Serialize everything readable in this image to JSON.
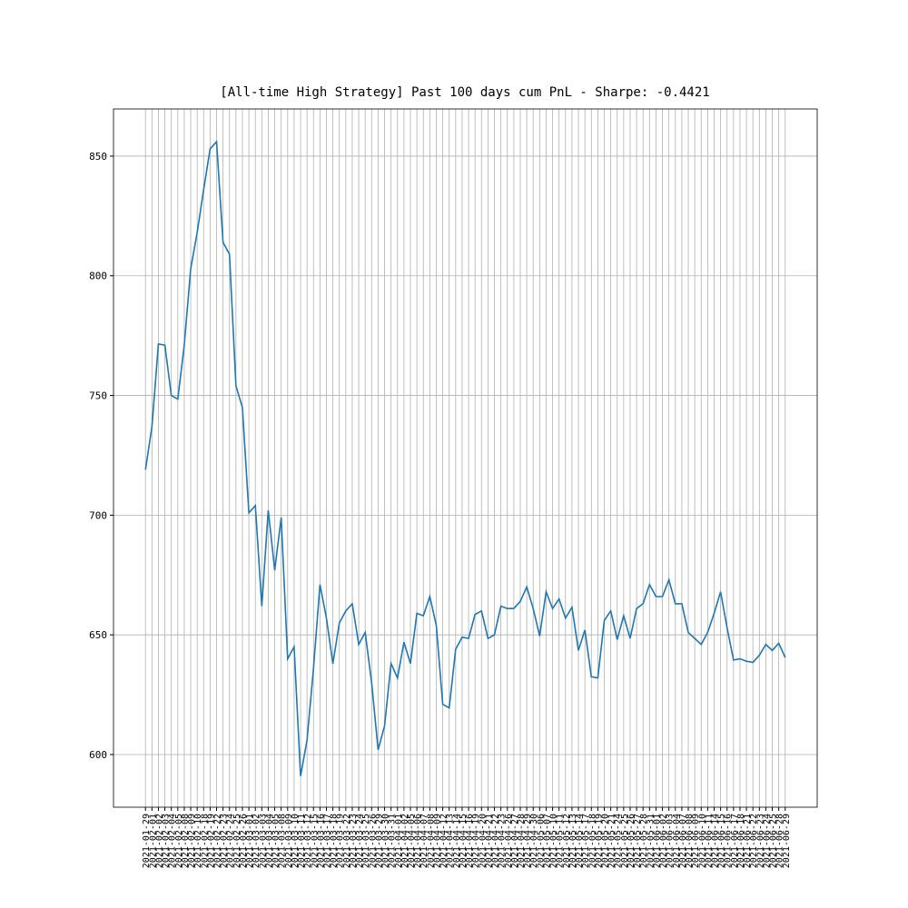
{
  "chart_data": {
    "type": "line",
    "title": "[All-time High Strategy] Past 100 days cum PnL - Sharpe: -0.4421",
    "categories": [
      "2021-01-29",
      "2021-02-01",
      "2021-02-02",
      "2021-02-03",
      "2021-02-04",
      "2021-02-05",
      "2021-02-08",
      "2021-02-09",
      "2021-02-10",
      "2021-02-18",
      "2021-02-19",
      "2021-02-22",
      "2021-02-23",
      "2021-02-24",
      "2021-02-25",
      "2021-02-26",
      "2021-03-01",
      "2021-03-02",
      "2021-03-03",
      "2021-03-04",
      "2021-03-05",
      "2021-03-08",
      "2021-03-09",
      "2021-03-10",
      "2021-03-11",
      "2021-03-12",
      "2021-03-15",
      "2021-03-16",
      "2021-03-17",
      "2021-03-18",
      "2021-03-19",
      "2021-03-22",
      "2021-03-23",
      "2021-03-24",
      "2021-03-25",
      "2021-03-26",
      "2021-03-29",
      "2021-03-30",
      "2021-03-31",
      "2021-04-01",
      "2021-04-02",
      "2021-04-05",
      "2021-04-06",
      "2021-04-07",
      "2021-04-08",
      "2021-04-09",
      "2021-04-12",
      "2021-04-13",
      "2021-04-14",
      "2021-04-15",
      "2021-04-16",
      "2021-04-19",
      "2021-04-20",
      "2021-04-21",
      "2021-04-22",
      "2021-04-23",
      "2021-04-26",
      "2021-04-27",
      "2021-04-28",
      "2021-04-29",
      "2021-04-30",
      "2021-05-06",
      "2021-05-07",
      "2021-05-10",
      "2021-05-11",
      "2021-05-12",
      "2021-05-13",
      "2021-05-14",
      "2021-05-17",
      "2021-05-18",
      "2021-05-19",
      "2021-05-20",
      "2021-05-21",
      "2021-05-24",
      "2021-05-25",
      "2021-05-26",
      "2021-05-27",
      "2021-05-28",
      "2021-05-31",
      "2021-06-01",
      "2021-06-02",
      "2021-06-03",
      "2021-06-04",
      "2021-06-07",
      "2021-06-08",
      "2021-06-09",
      "2021-06-10",
      "2021-06-11",
      "2021-06-14",
      "2021-06-15",
      "2021-06-16",
      "2021-06-17",
      "2021-06-18",
      "2021-06-21",
      "2021-06-22",
      "2021-06-23",
      "2021-06-24",
      "2021-06-25",
      "2021-06-28",
      "2021-06-29"
    ],
    "series": [
      {
        "name": "cum PnL",
        "color": "#1f77b4",
        "values": [
          719,
          737,
          771.5,
          771,
          750,
          748.5,
          771,
          803,
          818,
          836,
          853,
          856,
          814,
          809,
          754,
          745,
          701,
          704,
          662,
          702,
          677,
          699,
          640,
          645,
          591,
          606,
          636,
          671,
          657,
          638,
          655,
          660,
          663,
          646,
          651,
          630,
          602,
          612,
          638,
          632,
          647,
          638,
          659,
          658,
          666,
          654,
          621,
          619.5,
          644,
          649,
          648.5,
          658.5,
          660,
          648.5,
          650,
          662,
          661,
          661,
          664,
          670,
          661,
          649.5,
          668,
          661,
          665,
          657,
          661.5,
          643.5,
          652,
          632.5,
          632,
          656,
          660,
          648,
          658,
          648.5,
          661,
          663,
          671,
          666,
          666,
          673,
          663,
          663,
          651,
          648.5,
          646,
          651,
          659,
          668,
          653,
          639.5,
          640,
          639,
          638.5,
          641.5,
          646,
          643.5,
          646.5,
          640.5
        ]
      }
    ],
    "ylim": [
      578,
      869.7
    ],
    "yticks": [
      600,
      650,
      700,
      750,
      800,
      850
    ],
    "grid": true,
    "legend": false
  }
}
